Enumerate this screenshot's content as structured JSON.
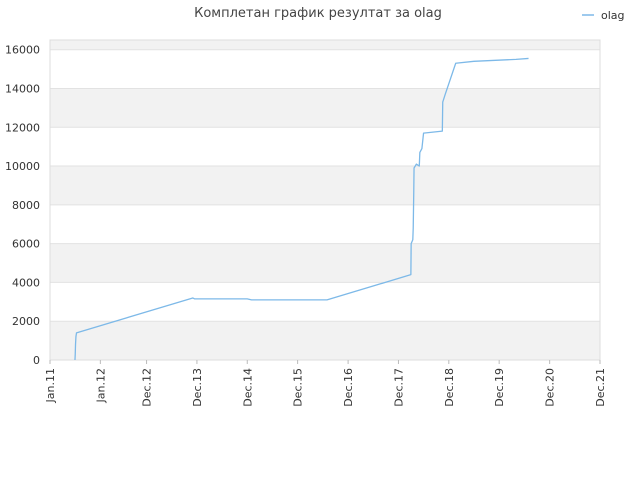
{
  "chart_data": {
    "type": "line",
    "title": "Комплетан график резултат за olag",
    "xlabel": "",
    "ylabel": "",
    "xlim": [
      "2011-01-01",
      "2021-12-01"
    ],
    "ylim": [
      0,
      16500
    ],
    "x_ticks": [
      {
        "label": "Jan.11",
        "date": "2011-01-01"
      },
      {
        "label": "Jan.12",
        "date": "2012-01-01"
      },
      {
        "label": "Dec.12",
        "date": "2012-12-01"
      },
      {
        "label": "Dec.13",
        "date": "2013-12-01"
      },
      {
        "label": "Dec.14",
        "date": "2014-12-01"
      },
      {
        "label": "Dec.15",
        "date": "2015-12-01"
      },
      {
        "label": "Dec.16",
        "date": "2016-12-01"
      },
      {
        "label": "Dec.17",
        "date": "2017-12-01"
      },
      {
        "label": "Dec.18",
        "date": "2018-12-01"
      },
      {
        "label": "Dec.19",
        "date": "2019-12-01"
      },
      {
        "label": "Dec.20",
        "date": "2020-12-01"
      },
      {
        "label": "Dec.21",
        "date": "2021-12-01"
      }
    ],
    "y_ticks": [
      0,
      2000,
      4000,
      6000,
      8000,
      10000,
      12000,
      14000,
      16000
    ],
    "y_tick_labels": [
      "0",
      "2000",
      "4000",
      "6000",
      "8000",
      "10000",
      "12000",
      "14000",
      "16000"
    ],
    "grid": true,
    "alternating_bands": true,
    "legend_position": "top-right",
    "series": [
      {
        "name": "olag",
        "color": "#7db9e8",
        "points": [
          {
            "x": "2011-07-01",
            "y": 0
          },
          {
            "x": "2011-07-03",
            "y": 300
          },
          {
            "x": "2011-07-05",
            "y": 800
          },
          {
            "x": "2011-07-08",
            "y": 1200
          },
          {
            "x": "2011-07-12",
            "y": 1400
          },
          {
            "x": "2013-11-01",
            "y": 3200
          },
          {
            "x": "2013-11-15",
            "y": 3150
          },
          {
            "x": "2014-12-01",
            "y": 3150
          },
          {
            "x": "2015-01-01",
            "y": 3100
          },
          {
            "x": "2016-07-01",
            "y": 3100
          },
          {
            "x": "2018-03-01",
            "y": 4400
          },
          {
            "x": "2018-03-03",
            "y": 6000
          },
          {
            "x": "2018-03-15",
            "y": 6200
          },
          {
            "x": "2018-03-18",
            "y": 6800
          },
          {
            "x": "2018-03-22",
            "y": 8700
          },
          {
            "x": "2018-03-24",
            "y": 9900
          },
          {
            "x": "2018-04-10",
            "y": 10100
          },
          {
            "x": "2018-05-01",
            "y": 10000
          },
          {
            "x": "2018-05-05",
            "y": 10700
          },
          {
            "x": "2018-05-20",
            "y": 10900
          },
          {
            "x": "2018-06-01",
            "y": 11700
          },
          {
            "x": "2018-10-15",
            "y": 11800
          },
          {
            "x": "2018-10-18",
            "y": 13300
          },
          {
            "x": "2018-11-05",
            "y": 13700
          },
          {
            "x": "2019-01-20",
            "y": 15300
          },
          {
            "x": "2019-06-01",
            "y": 15400
          },
          {
            "x": "2020-04-01",
            "y": 15500
          },
          {
            "x": "2020-07-01",
            "y": 15550
          }
        ]
      }
    ]
  }
}
